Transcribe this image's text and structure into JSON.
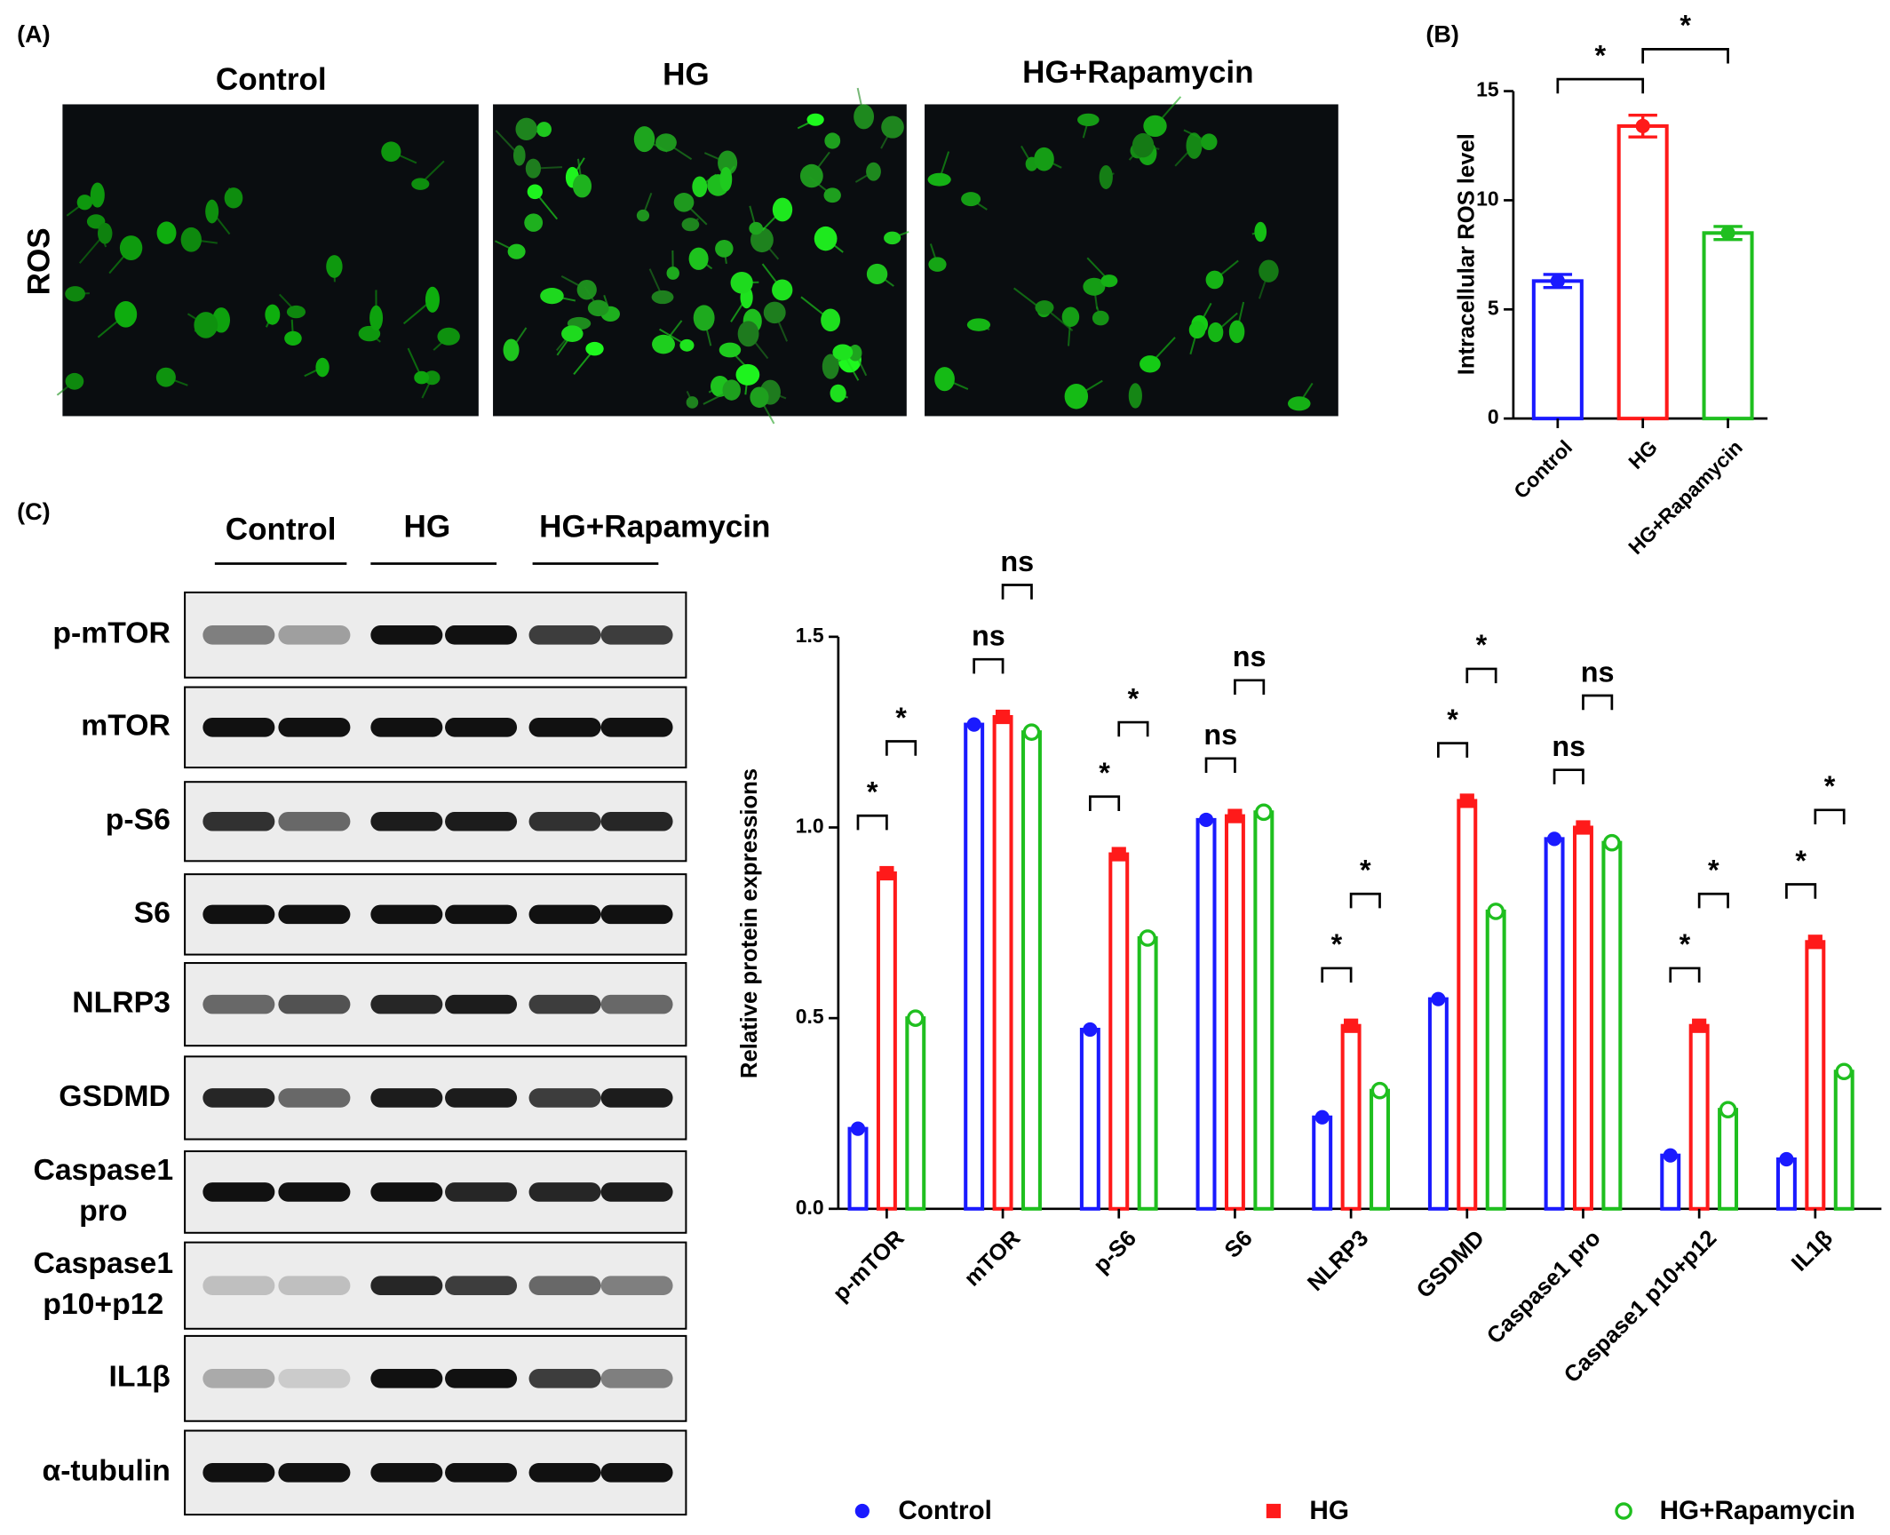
{
  "panel_labels": [
    "(A)",
    "(B)",
    "(C)"
  ],
  "images": {
    "columns": [
      "Control",
      "HG",
      "HG+Rapamycin"
    ],
    "row_label": "ROS"
  },
  "blots": {
    "groups": [
      "Control",
      "HG",
      "HG+Rapamycin"
    ],
    "rows": [
      [
        "p-mTOR"
      ],
      [
        "mTOR"
      ],
      [
        "p-S6"
      ],
      [
        "S6"
      ],
      [
        "NLRP3"
      ],
      [
        "GSDMD"
      ],
      [
        "Caspase1",
        "pro"
      ],
      [
        "Caspase1",
        "p10+p12"
      ],
      [
        "IL1β"
      ],
      [
        "α-tubulin"
      ]
    ]
  },
  "chart_data": [
    {
      "type": "bar",
      "y_label": "Intracellular ROS level",
      "categories": [
        "Control",
        "HG",
        "HG+Rapamycin"
      ],
      "values": [
        6.3,
        13.4,
        8.5
      ],
      "errors": [
        0.3,
        0.5,
        0.3
      ],
      "colors": [
        "#1a1aff",
        "#ff1a1a",
        "#1fbf1f"
      ],
      "ylim": [
        0,
        15
      ],
      "yticks": [
        0,
        5,
        10,
        15
      ],
      "significance": [
        {
          "label": "*",
          "between": [
            0,
            1
          ]
        },
        {
          "label": "*",
          "between": [
            1,
            2
          ]
        }
      ]
    },
    {
      "type": "grouped_bar",
      "y_label": "Relative protein expressions",
      "categories": [
        "p-mTOR",
        "mTOR",
        "p-S6",
        "S6",
        "NLRP3",
        "GSDMD",
        "Caspase1 pro",
        "Caspase1 p10+p12",
        "IL1β"
      ],
      "series": [
        {
          "name": "Control",
          "color": "#1a1aff",
          "values": [
            0.21,
            1.27,
            0.47,
            1.02,
            0.24,
            0.55,
            0.97,
            0.14,
            0.13
          ]
        },
        {
          "name": "HG",
          "color": "#ff1a1a",
          "values": [
            0.88,
            1.29,
            0.93,
            1.03,
            0.48,
            1.07,
            1.0,
            0.48,
            0.7
          ]
        },
        {
          "name": "HG+Rapamycin",
          "color": "#1fbf1f",
          "values": [
            0.5,
            1.25,
            0.71,
            1.04,
            0.31,
            0.78,
            0.96,
            0.26,
            0.36
          ]
        }
      ],
      "ylim": [
        0,
        1.5
      ],
      "yticks": [
        {
          "value": 0,
          "label": "0.0"
        },
        {
          "value": 0.5,
          "label": "0.5"
        },
        {
          "value": 1,
          "label": "1.0"
        },
        {
          "value": 1.5,
          "label": "1.5"
        }
      ],
      "significance": [
        [
          "*",
          "*"
        ],
        [
          "ns",
          "ns"
        ],
        [
          "*",
          "*"
        ],
        [
          "ns",
          "ns"
        ],
        [
          "*",
          "*"
        ],
        [
          "*",
          "*"
        ],
        [
          "ns",
          "ns"
        ],
        [
          "*",
          "*"
        ],
        [
          "*",
          "*"
        ]
      ],
      "legend": "bottom"
    }
  ]
}
